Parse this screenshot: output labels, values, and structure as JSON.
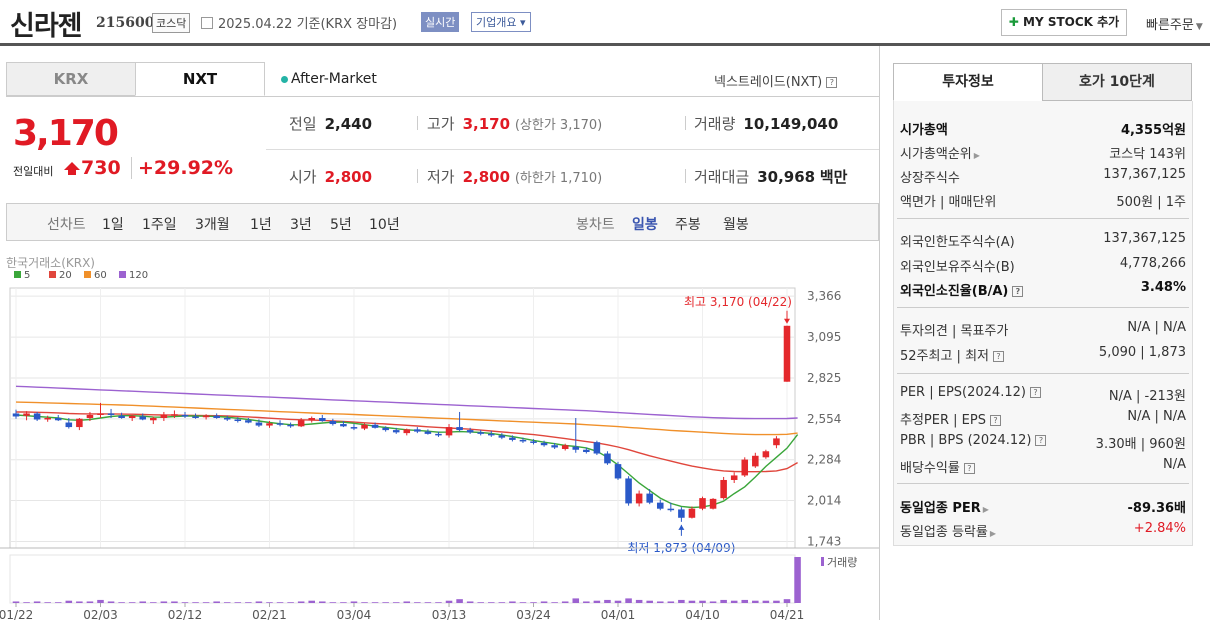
{
  "header": {
    "name": "신라젠",
    "code": "215600",
    "market": "코스닥",
    "date_text": "2025.04.22  기준(KRX 장마감)",
    "realtime": "실시간",
    "company_overview": "기업개요",
    "mystock_label": "MY STOCK 추가",
    "quick_order": "빠른주문"
  },
  "tabs": {
    "krx": "KRX",
    "nxt": "NXT",
    "after_market": "After-Market",
    "nextrade": "넥스트레이드(NXT)"
  },
  "quote": {
    "price": "3,170",
    "change_label": "전일대비",
    "change": "730",
    "change_pct": "+29.92%",
    "prev_label": "전일",
    "prev": "2,440",
    "high_label": "고가",
    "high": "3,170",
    "upper_limit": "(상한가 3,170)",
    "volume_label": "거래량",
    "volume": "10,149,040",
    "open_label": "시가",
    "open": "2,800",
    "low_label": "저가",
    "low": "2,800",
    "lower_limit": "(하한가 1,710)",
    "amount_label": "거래대금",
    "amount": "30,968",
    "amount_unit": "백만"
  },
  "period_bar": {
    "line_label": "선차트",
    "periods": [
      "1일",
      "1주일",
      "3개월",
      "1년",
      "3년",
      "5년",
      "10년"
    ],
    "candle_label": "봉차트",
    "candle_periods": [
      "일봉",
      "주봉",
      "월봉"
    ],
    "selected": "일봉"
  },
  "chart_data": {
    "type": "candlestick",
    "source": "한국거래소(KRX)",
    "legend": [
      "5",
      "20",
      "60",
      "120"
    ],
    "legend_colors": [
      "#3aa63a",
      "#e0463c",
      "#f0902a",
      "#9c62d0"
    ],
    "y_ticks": [
      3366,
      3095,
      2825,
      2554,
      2284,
      2014,
      1743
    ],
    "ylim": [
      1700,
      3420
    ],
    "x_ticks": [
      "01/22",
      "02/03",
      "02/12",
      "02/21",
      "03/04",
      "03/13",
      "03/24",
      "04/01",
      "04/10",
      "04/21"
    ],
    "high_annotation": "최고 3,170 (04/22)",
    "low_annotation": "최저 1,873 (04/09)",
    "volume_label": "거래량",
    "candles": [
      {
        "o": 2590,
        "h": 2615,
        "l": 2555,
        "c": 2570
      },
      {
        "o": 2575,
        "h": 2605,
        "l": 2545,
        "c": 2590
      },
      {
        "o": 2590,
        "h": 2600,
        "l": 2540,
        "c": 2550
      },
      {
        "o": 2555,
        "h": 2575,
        "l": 2535,
        "c": 2560
      },
      {
        "o": 2560,
        "h": 2580,
        "l": 2540,
        "c": 2545
      },
      {
        "o": 2530,
        "h": 2560,
        "l": 2490,
        "c": 2500
      },
      {
        "o": 2500,
        "h": 2560,
        "l": 2480,
        "c": 2555
      },
      {
        "o": 2560,
        "h": 2600,
        "l": 2540,
        "c": 2580
      },
      {
        "o": 2580,
        "h": 2660,
        "l": 2560,
        "c": 2590
      },
      {
        "o": 2590,
        "h": 2620,
        "l": 2560,
        "c": 2580
      },
      {
        "o": 2575,
        "h": 2595,
        "l": 2555,
        "c": 2560
      },
      {
        "o": 2560,
        "h": 2580,
        "l": 2540,
        "c": 2575
      },
      {
        "o": 2570,
        "h": 2590,
        "l": 2545,
        "c": 2550
      },
      {
        "o": 2545,
        "h": 2570,
        "l": 2520,
        "c": 2560
      },
      {
        "o": 2560,
        "h": 2600,
        "l": 2540,
        "c": 2580
      },
      {
        "o": 2580,
        "h": 2610,
        "l": 2560,
        "c": 2585
      },
      {
        "o": 2580,
        "h": 2600,
        "l": 2560,
        "c": 2570
      },
      {
        "o": 2570,
        "h": 2590,
        "l": 2555,
        "c": 2565
      },
      {
        "o": 2565,
        "h": 2585,
        "l": 2550,
        "c": 2575
      },
      {
        "o": 2575,
        "h": 2590,
        "l": 2555,
        "c": 2560
      },
      {
        "o": 2560,
        "h": 2575,
        "l": 2540,
        "c": 2550
      },
      {
        "o": 2550,
        "h": 2565,
        "l": 2530,
        "c": 2545
      },
      {
        "o": 2545,
        "h": 2560,
        "l": 2525,
        "c": 2530
      },
      {
        "o": 2530,
        "h": 2550,
        "l": 2500,
        "c": 2510
      },
      {
        "o": 2510,
        "h": 2540,
        "l": 2495,
        "c": 2525
      },
      {
        "o": 2525,
        "h": 2545,
        "l": 2505,
        "c": 2515
      },
      {
        "o": 2515,
        "h": 2530,
        "l": 2495,
        "c": 2505
      },
      {
        "o": 2505,
        "h": 2560,
        "l": 2500,
        "c": 2545
      },
      {
        "o": 2545,
        "h": 2570,
        "l": 2530,
        "c": 2560
      },
      {
        "o": 2560,
        "h": 2580,
        "l": 2535,
        "c": 2540
      },
      {
        "o": 2540,
        "h": 2555,
        "l": 2510,
        "c": 2520
      },
      {
        "o": 2520,
        "h": 2540,
        "l": 2500,
        "c": 2505
      },
      {
        "o": 2500,
        "h": 2520,
        "l": 2480,
        "c": 2490
      },
      {
        "o": 2490,
        "h": 2525,
        "l": 2480,
        "c": 2515
      },
      {
        "o": 2515,
        "h": 2530,
        "l": 2490,
        "c": 2495
      },
      {
        "o": 2495,
        "h": 2505,
        "l": 2470,
        "c": 2480
      },
      {
        "o": 2480,
        "h": 2495,
        "l": 2455,
        "c": 2465
      },
      {
        "o": 2460,
        "h": 2490,
        "l": 2445,
        "c": 2485
      },
      {
        "o": 2485,
        "h": 2500,
        "l": 2460,
        "c": 2470
      },
      {
        "o": 2470,
        "h": 2485,
        "l": 2450,
        "c": 2455
      },
      {
        "o": 2455,
        "h": 2470,
        "l": 2435,
        "c": 2445
      },
      {
        "o": 2445,
        "h": 2520,
        "l": 2430,
        "c": 2500
      },
      {
        "o": 2500,
        "h": 2600,
        "l": 2470,
        "c": 2480
      },
      {
        "o": 2480,
        "h": 2495,
        "l": 2455,
        "c": 2465
      },
      {
        "o": 2465,
        "h": 2480,
        "l": 2445,
        "c": 2455
      },
      {
        "o": 2455,
        "h": 2475,
        "l": 2435,
        "c": 2445
      },
      {
        "o": 2445,
        "h": 2460,
        "l": 2420,
        "c": 2430
      },
      {
        "o": 2430,
        "h": 2445,
        "l": 2405,
        "c": 2415
      },
      {
        "o": 2415,
        "h": 2430,
        "l": 2395,
        "c": 2405
      },
      {
        "o": 2405,
        "h": 2420,
        "l": 2385,
        "c": 2395
      },
      {
        "o": 2395,
        "h": 2410,
        "l": 2370,
        "c": 2380
      },
      {
        "o": 2380,
        "h": 2395,
        "l": 2355,
        "c": 2365
      },
      {
        "o": 2355,
        "h": 2390,
        "l": 2345,
        "c": 2380
      },
      {
        "o": 2370,
        "h": 2560,
        "l": 2330,
        "c": 2350
      },
      {
        "o": 2350,
        "h": 2365,
        "l": 2325,
        "c": 2335
      },
      {
        "o": 2400,
        "h": 2410,
        "l": 2315,
        "c": 2325
      },
      {
        "o": 2325,
        "h": 2340,
        "l": 2250,
        "c": 2260
      },
      {
        "o": 2255,
        "h": 2270,
        "l": 2150,
        "c": 2160
      },
      {
        "o": 2160,
        "h": 2175,
        "l": 1980,
        "c": 1995
      },
      {
        "o": 1995,
        "h": 2080,
        "l": 1975,
        "c": 2060
      },
      {
        "o": 2060,
        "h": 2090,
        "l": 1990,
        "c": 2000
      },
      {
        "o": 2000,
        "h": 2020,
        "l": 1950,
        "c": 1960
      },
      {
        "o": 1960,
        "h": 2000,
        "l": 1940,
        "c": 1955
      },
      {
        "o": 1955,
        "h": 1970,
        "l": 1873,
        "c": 1900
      },
      {
        "o": 1900,
        "h": 1975,
        "l": 1895,
        "c": 1960
      },
      {
        "o": 1960,
        "h": 2040,
        "l": 1950,
        "c": 2030
      },
      {
        "o": 1960,
        "h": 2030,
        "l": 1955,
        "c": 2025
      },
      {
        "o": 2030,
        "h": 2170,
        "l": 2020,
        "c": 2150
      },
      {
        "o": 2150,
        "h": 2200,
        "l": 2130,
        "c": 2180
      },
      {
        "o": 2180,
        "h": 2300,
        "l": 2170,
        "c": 2285
      },
      {
        "o": 2240,
        "h": 2330,
        "l": 2230,
        "c": 2310
      },
      {
        "o": 2300,
        "h": 2350,
        "l": 2290,
        "c": 2340
      },
      {
        "o": 2380,
        "h": 2440,
        "l": 2360,
        "c": 2425
      },
      {
        "o": 2800,
        "h": 3170,
        "l": 2800,
        "c": 3170
      }
    ],
    "ma": {
      "5": [
        2580,
        2575,
        2570,
        2565,
        2560,
        2548,
        2545,
        2550,
        2560,
        2570,
        2575,
        2575,
        2572,
        2566,
        2565,
        2570,
        2573,
        2573,
        2572,
        2570,
        2565,
        2558,
        2550,
        2540,
        2530,
        2522,
        2516,
        2515,
        2520,
        2527,
        2532,
        2532,
        2525,
        2516,
        2506,
        2497,
        2489,
        2482,
        2478,
        2473,
        2466,
        2467,
        2470,
        2468,
        2464,
        2458,
        2448,
        2437,
        2425,
        2412,
        2400,
        2390,
        2378,
        2372,
        2362,
        2340,
        2300,
        2250,
        2190,
        2130,
        2080,
        2030,
        1995,
        1975,
        1968,
        1972,
        1985,
        2010,
        2060,
        2105,
        2170,
        2240,
        2300,
        2360,
        2450
      ],
      "20": [
        2600,
        2600,
        2598,
        2596,
        2594,
        2590,
        2588,
        2587,
        2587,
        2587,
        2586,
        2585,
        2583,
        2581,
        2580,
        2579,
        2578,
        2577,
        2576,
        2575,
        2573,
        2570,
        2567,
        2563,
        2559,
        2555,
        2551,
        2548,
        2546,
        2544,
        2541,
        2537,
        2533,
        2528,
        2524,
        2520,
        2516,
        2512,
        2507,
        2502,
        2498,
        2494,
        2490,
        2486,
        2480,
        2474,
        2468,
        2462,
        2456,
        2450,
        2442,
        2433,
        2424,
        2414,
        2404,
        2395,
        2383,
        2368,
        2350,
        2330,
        2310,
        2292,
        2275,
        2258,
        2242,
        2230,
        2218,
        2210,
        2206,
        2205,
        2205,
        2206,
        2210,
        2225,
        2265
      ],
      "60": [
        2665,
        2664,
        2662,
        2660,
        2658,
        2656,
        2654,
        2652,
        2650,
        2648,
        2646,
        2644,
        2641,
        2638,
        2635,
        2632,
        2629,
        2626,
        2623,
        2620,
        2617,
        2614,
        2611,
        2608,
        2605,
        2602,
        2599,
        2596,
        2593,
        2590,
        2588,
        2586,
        2583,
        2580,
        2577,
        2574,
        2571,
        2568,
        2565,
        2562,
        2559,
        2556,
        2553,
        2550,
        2547,
        2544,
        2541,
        2538,
        2535,
        2532,
        2529,
        2526,
        2523,
        2520,
        2516,
        2512,
        2508,
        2503,
        2498,
        2493,
        2488,
        2483,
        2478,
        2474,
        2470,
        2466,
        2462,
        2458,
        2455,
        2452,
        2450,
        2450,
        2450,
        2452,
        2460
      ],
      "120": [
        2770,
        2767,
        2764,
        2761,
        2758,
        2755,
        2752,
        2749,
        2746,
        2743,
        2740,
        2737,
        2734,
        2731,
        2728,
        2725,
        2722,
        2719,
        2716,
        2713,
        2710,
        2707,
        2704,
        2701,
        2698,
        2695,
        2692,
        2689,
        2686,
        2683,
        2680,
        2677,
        2674,
        2671,
        2668,
        2665,
        2662,
        2659,
        2656,
        2653,
        2650,
        2647,
        2644,
        2641,
        2638,
        2635,
        2632,
        2629,
        2626,
        2623,
        2620,
        2617,
        2614,
        2611,
        2608,
        2604,
        2600,
        2596,
        2592,
        2588,
        2584,
        2580,
        2576,
        2572,
        2568,
        2565,
        2562,
        2560,
        2558,
        2557,
        2556,
        2556,
        2556,
        2557,
        2560
      ]
    },
    "volumes": [
      2,
      1,
      2,
      1,
      1,
      3,
      2,
      2,
      4,
      2,
      1,
      1,
      2,
      1,
      2,
      2,
      1,
      1,
      1,
      2,
      1,
      1,
      1,
      2,
      1,
      1,
      1,
      2,
      3,
      2,
      1,
      1,
      2,
      1,
      1,
      1,
      1,
      2,
      1,
      1,
      1,
      3,
      5,
      2,
      1,
      1,
      1,
      2,
      1,
      1,
      2,
      1,
      2,
      6,
      2,
      3,
      4,
      3,
      6,
      4,
      3,
      2,
      2,
      4,
      3,
      3,
      2,
      4,
      3,
      4,
      3,
      3,
      3,
      5,
      60
    ]
  },
  "right_panel": {
    "tab_info": "투자정보",
    "tab_hoga": "호가 10단계",
    "rows": [
      {
        "l": "시가총액",
        "r": "4,355억원",
        "bold": true
      },
      {
        "l": "시가총액순위",
        "r": "코스닥 143위",
        "arrow": true
      },
      {
        "l": "상장주식수",
        "r": "137,367,125"
      },
      {
        "l": "액면가 | 매매단위",
        "r": "500원 | 1주"
      },
      {
        "l": "외국인한도주식수(A)",
        "r": "137,367,125"
      },
      {
        "l": "외국인보유주식수(B)",
        "r": "4,778,266"
      },
      {
        "l": "외국인소진율(B/A)",
        "r": "3.48%",
        "bold": true,
        "q": true
      },
      {
        "l": "투자의견 | 목표주가",
        "r": "N/A | N/A"
      },
      {
        "l": "52주최고 | 최저",
        "r": "5,090 | 1,873",
        "q": true
      },
      {
        "l": "PER | EPS(2024.12)",
        "r": "N/A | -213원",
        "q": true
      },
      {
        "l": "추정PER | EPS",
        "r": "N/A | N/A",
        "q": true
      },
      {
        "l": "PBR | BPS (2024.12)",
        "r": "3.30배 | 960원",
        "q": true
      },
      {
        "l": "배당수익률",
        "r": "N/A",
        "q": true
      },
      {
        "l": "동일업종 PER",
        "r": "-89.36배",
        "bold": true,
        "arrow": true
      },
      {
        "l": "동일업종 등락률",
        "r": "+2.84%",
        "red": true,
        "arrow": true
      }
    ]
  }
}
